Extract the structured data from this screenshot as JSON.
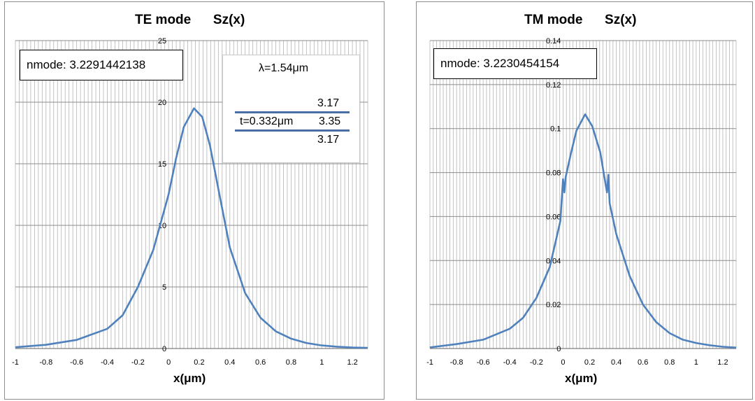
{
  "charts": [
    {
      "title": "TE mode      Sz(x)",
      "nmode_label": "nmode: 3.2291442138",
      "xlabel": "x(μm)",
      "wavelength": "λ=1.54μm",
      "layers": {
        "top": "3.17",
        "thickness": "t=0.332μm",
        "core": "3.35",
        "bottom": "3.17"
      }
    },
    {
      "title": "TM mode      Sz(x)",
      "nmode_label": "nmode: 3.2230454154",
      "xlabel": "x(μm)"
    }
  ],
  "chart_data": [
    {
      "type": "line",
      "title": "TE mode Sz(x)",
      "xlabel": "x(μm)",
      "ylabel": "",
      "xlim": [
        -1,
        1.3
      ],
      "ylim": [
        0,
        25
      ],
      "xticks": [
        -1,
        -0.8,
        -0.6,
        -0.4,
        -0.2,
        0,
        0.2,
        0.4,
        0.6,
        0.8,
        1,
        1.2
      ],
      "yticks": [
        0,
        5,
        10,
        15,
        20,
        25
      ],
      "grid": true,
      "line_color": "#4f81bd",
      "series": [
        {
          "x": [
            -1.0,
            -0.8,
            -0.6,
            -0.4,
            -0.3,
            -0.2,
            -0.1,
            0.0,
            0.05,
            0.1,
            0.166,
            0.22,
            0.27,
            0.332,
            0.4,
            0.5,
            0.6,
            0.7,
            0.8,
            0.9,
            1.0,
            1.1,
            1.2,
            1.3
          ],
          "y": [
            0.1,
            0.3,
            0.7,
            1.6,
            2.7,
            5.0,
            8.0,
            12.5,
            15.5,
            18.0,
            19.5,
            18.8,
            16.5,
            12.5,
            8.2,
            4.5,
            2.5,
            1.4,
            0.8,
            0.45,
            0.25,
            0.15,
            0.08,
            0.05
          ]
        }
      ]
    },
    {
      "type": "line",
      "title": "TM mode Sz(x)",
      "xlabel": "x(μm)",
      "ylabel": "",
      "xlim": [
        -1,
        1.3
      ],
      "ylim": [
        0,
        0.14
      ],
      "xticks": [
        -1,
        -0.8,
        -0.6,
        -0.4,
        -0.2,
        0,
        0.2,
        0.4,
        0.6,
        0.8,
        1,
        1.2
      ],
      "yticks": [
        0,
        0.02,
        0.04,
        0.06,
        0.08,
        0.1,
        0.12,
        0.14
      ],
      "grid": true,
      "line_color": "#4f81bd",
      "series": [
        {
          "x": [
            -1.0,
            -0.8,
            -0.6,
            -0.4,
            -0.3,
            -0.2,
            -0.1,
            -0.02,
            0.0,
            0.01,
            0.02,
            0.06,
            0.1,
            0.166,
            0.22,
            0.28,
            0.31,
            0.33,
            0.34,
            0.35,
            0.4,
            0.5,
            0.6,
            0.7,
            0.8,
            0.9,
            1.0,
            1.1,
            1.2,
            1.3
          ],
          "y": [
            0.0005,
            0.002,
            0.004,
            0.009,
            0.014,
            0.023,
            0.037,
            0.058,
            0.077,
            0.071,
            0.078,
            0.089,
            0.099,
            0.1065,
            0.101,
            0.089,
            0.078,
            0.071,
            0.079,
            0.066,
            0.052,
            0.033,
            0.02,
            0.012,
            0.007,
            0.004,
            0.0025,
            0.0015,
            0.0008,
            0.0004
          ]
        }
      ]
    }
  ]
}
